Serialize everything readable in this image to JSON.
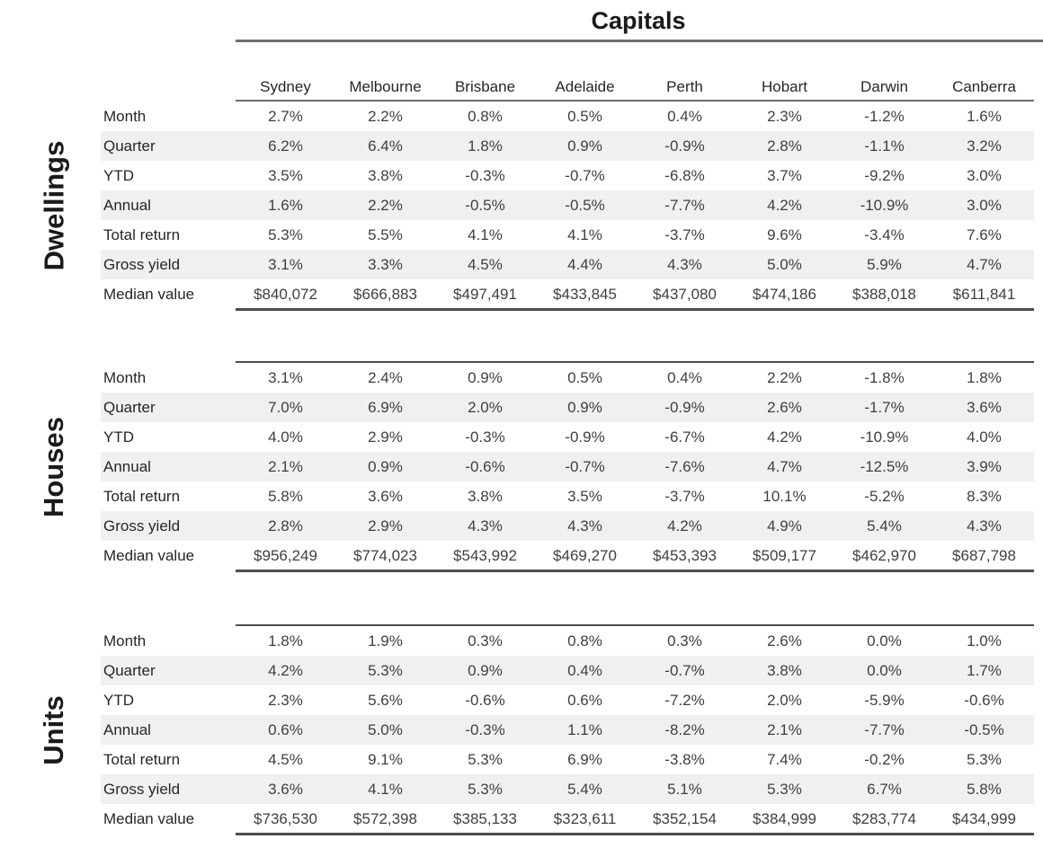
{
  "chart_data": {
    "type": "table",
    "title": "Capitals",
    "cities": [
      "Sydney",
      "Melbourne",
      "Brisbane",
      "Adelaide",
      "Perth",
      "Hobart",
      "Darwin",
      "Canberra"
    ],
    "metrics": [
      "Month",
      "Quarter",
      "YTD",
      "Annual",
      "Total return",
      "Gross yield",
      "Median value"
    ],
    "sections": [
      {
        "name": "Dwellings",
        "rows": [
          {
            "label": "Month",
            "values": [
              "2.7%",
              "2.2%",
              "0.8%",
              "0.5%",
              "0.4%",
              "2.3%",
              "-1.2%",
              "1.6%"
            ]
          },
          {
            "label": "Quarter",
            "values": [
              "6.2%",
              "6.4%",
              "1.8%",
              "0.9%",
              "-0.9%",
              "2.8%",
              "-1.1%",
              "3.2%"
            ]
          },
          {
            "label": "YTD",
            "values": [
              "3.5%",
              "3.8%",
              "-0.3%",
              "-0.7%",
              "-6.8%",
              "3.7%",
              "-9.2%",
              "3.0%"
            ]
          },
          {
            "label": "Annual",
            "values": [
              "1.6%",
              "2.2%",
              "-0.5%",
              "-0.5%",
              "-7.7%",
              "4.2%",
              "-10.9%",
              "3.0%"
            ]
          },
          {
            "label": "Total return",
            "values": [
              "5.3%",
              "5.5%",
              "4.1%",
              "4.1%",
              "-3.7%",
              "9.6%",
              "-3.4%",
              "7.6%"
            ]
          },
          {
            "label": "Gross yield",
            "values": [
              "3.1%",
              "3.3%",
              "4.5%",
              "4.4%",
              "4.3%",
              "5.0%",
              "5.9%",
              "4.7%"
            ]
          },
          {
            "label": "Median value",
            "values": [
              "$840,072",
              "$666,883",
              "$497,491",
              "$433,845",
              "$437,080",
              "$474,186",
              "$388,018",
              "$611,841"
            ]
          }
        ]
      },
      {
        "name": "Houses",
        "rows": [
          {
            "label": "Month",
            "values": [
              "3.1%",
              "2.4%",
              "0.9%",
              "0.5%",
              "0.4%",
              "2.2%",
              "-1.8%",
              "1.8%"
            ]
          },
          {
            "label": "Quarter",
            "values": [
              "7.0%",
              "6.9%",
              "2.0%",
              "0.9%",
              "-0.9%",
              "2.6%",
              "-1.7%",
              "3.6%"
            ]
          },
          {
            "label": "YTD",
            "values": [
              "4.0%",
              "2.9%",
              "-0.3%",
              "-0.9%",
              "-6.7%",
              "4.2%",
              "-10.9%",
              "4.0%"
            ]
          },
          {
            "label": "Annual",
            "values": [
              "2.1%",
              "0.9%",
              "-0.6%",
              "-0.7%",
              "-7.6%",
              "4.7%",
              "-12.5%",
              "3.9%"
            ]
          },
          {
            "label": "Total return",
            "values": [
              "5.8%",
              "3.6%",
              "3.8%",
              "3.5%",
              "-3.7%",
              "10.1%",
              "-5.2%",
              "8.3%"
            ]
          },
          {
            "label": "Gross yield",
            "values": [
              "2.8%",
              "2.9%",
              "4.3%",
              "4.3%",
              "4.2%",
              "4.9%",
              "5.4%",
              "4.3%"
            ]
          },
          {
            "label": "Median value",
            "values": [
              "$956,249",
              "$774,023",
              "$543,992",
              "$469,270",
              "$453,393",
              "$509,177",
              "$462,970",
              "$687,798"
            ]
          }
        ]
      },
      {
        "name": "Units",
        "rows": [
          {
            "label": "Month",
            "values": [
              "1.8%",
              "1.9%",
              "0.3%",
              "0.8%",
              "0.3%",
              "2.6%",
              "0.0%",
              "1.0%"
            ]
          },
          {
            "label": "Quarter",
            "values": [
              "4.2%",
              "5.3%",
              "0.9%",
              "0.4%",
              "-0.7%",
              "3.8%",
              "0.0%",
              "1.7%"
            ]
          },
          {
            "label": "YTD",
            "values": [
              "2.3%",
              "5.6%",
              "-0.6%",
              "0.6%",
              "-7.2%",
              "2.0%",
              "-5.9%",
              "-0.6%"
            ]
          },
          {
            "label": "Annual",
            "values": [
              "0.6%",
              "5.0%",
              "-0.3%",
              "1.1%",
              "-8.2%",
              "2.1%",
              "-7.7%",
              "-0.5%"
            ]
          },
          {
            "label": "Total return",
            "values": [
              "4.5%",
              "9.1%",
              "5.3%",
              "6.9%",
              "-3.8%",
              "7.4%",
              "-0.2%",
              "5.3%"
            ]
          },
          {
            "label": "Gross yield",
            "values": [
              "3.6%",
              "4.1%",
              "5.3%",
              "5.4%",
              "5.1%",
              "5.3%",
              "6.7%",
              "5.8%"
            ]
          },
          {
            "label": "Median value",
            "values": [
              "$736,530",
              "$572,398",
              "$385,133",
              "$323,611",
              "$352,154",
              "$384,999",
              "$283,774",
              "$434,999"
            ]
          }
        ]
      }
    ],
    "layout_hints": {
      "striped_rows": [
        "Quarter",
        "Annual",
        "Gross yield"
      ],
      "section_labels_rotated": true
    },
    "colors": {
      "stripe": "#f0f0f0",
      "rule_light": "#6f6f6f",
      "rule_dark": "#4d4d4d",
      "value_text": "#3f3f3f",
      "label_text": "#262626",
      "title_text": "#1a1a1a"
    }
  }
}
